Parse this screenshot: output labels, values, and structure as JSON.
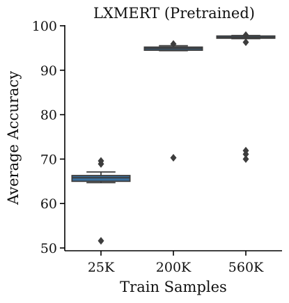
{
  "chart_data": {
    "type": "box",
    "title": "LXMERT (Pretrained)",
    "xlabel": "Train Samples",
    "ylabel": "Average Accuracy",
    "ylim": [
      49.5,
      101
    ],
    "yticks": [
      50,
      60,
      70,
      80,
      90,
      100
    ],
    "grid": false,
    "colors": {
      "box": "#3a6f9c",
      "line": "#3d3d3d",
      "axis": "#000000"
    },
    "categories": [
      "25K",
      "200K",
      "560K"
    ],
    "boxes": [
      {
        "category": "25K",
        "whisker_low": 64.7,
        "q1": 65.0,
        "median": 65.8,
        "q3": 66.3,
        "whisker_high": 67.1,
        "outliers": [
          51.6,
          68.9,
          69.6
        ]
      },
      {
        "category": "200K",
        "whisker_low": 94.4,
        "q1": 94.5,
        "median": 94.9,
        "q3": 95.2,
        "whisker_high": 95.5,
        "outliers": [
          70.3,
          95.9
        ]
      },
      {
        "category": "560K",
        "whisker_low": 97.1,
        "q1": 97.2,
        "median": 97.4,
        "q3": 97.7,
        "whisker_high": 97.8,
        "outliers": [
          70.0,
          71.1,
          71.9,
          96.3,
          97.9
        ]
      }
    ]
  }
}
